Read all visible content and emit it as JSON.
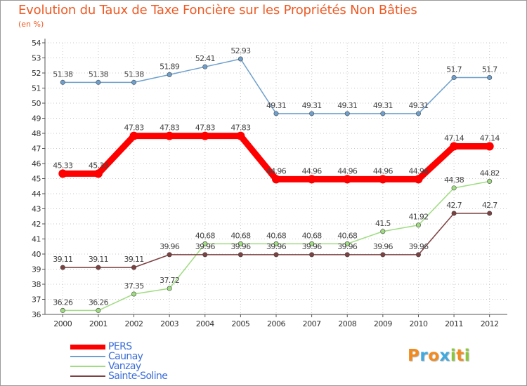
{
  "chart_data": {
    "type": "line",
    "title": "Evolution du Taux de Taxe Foncière sur les Propriétés Non Bâties",
    "subtitle": "(en %)",
    "xlabel": "",
    "ylabel": "(en %)",
    "ylim": [
      36,
      54
    ],
    "yticks": [
      "36",
      "37",
      "38",
      "39",
      "40",
      "41",
      "42",
      "43",
      "44",
      "45",
      "46",
      "47",
      "48",
      "49",
      "50",
      "51",
      "52",
      "53",
      "54"
    ],
    "x": [
      "2000",
      "2001",
      "2002",
      "2003",
      "2004",
      "2005",
      "2006",
      "2007",
      "2008",
      "2009",
      "2010",
      "2011",
      "2012"
    ],
    "series": [
      {
        "name": "PERS",
        "color": "#ff0000",
        "values": [
          45.33,
          45.33,
          47.83,
          47.83,
          47.83,
          47.83,
          44.96,
          44.96,
          44.96,
          44.96,
          44.96,
          47.14,
          47.14
        ],
        "labels": [
          "45.33",
          "45.33",
          "47.83",
          "47.83",
          "47.83",
          "47.83",
          "44.96",
          "44.96",
          "44.96",
          "44.96",
          "44.96",
          "47.14",
          "47.14"
        ]
      },
      {
        "name": "Caunay",
        "color": "#6ea0cd",
        "values": [
          51.38,
          51.38,
          51.38,
          51.89,
          52.41,
          52.93,
          49.31,
          49.31,
          49.31,
          49.31,
          49.31,
          51.7,
          51.7
        ],
        "labels": [
          "51.38",
          "51.38",
          "51.38",
          "51.89",
          "52.41",
          "52.93",
          "49.31",
          "49.31",
          "49.31",
          "49.31",
          "49.31",
          "51.7",
          "51.7"
        ]
      },
      {
        "name": "Vanzay",
        "color": "#a0dc82",
        "values": [
          36.26,
          36.26,
          37.35,
          37.72,
          40.68,
          40.68,
          40.68,
          40.68,
          40.68,
          41.5,
          41.92,
          44.38,
          44.82
        ],
        "labels": [
          "36.26",
          "36.26",
          "37.35",
          "37.72",
          "40.68",
          "40.68",
          "40.68",
          "40.68",
          "40.68",
          "41.5",
          "41.92",
          "44.38",
          "44.82"
        ]
      },
      {
        "name": "Sainte-Soline",
        "color": "#7d4141",
        "values": [
          39.11,
          39.11,
          39.11,
          39.96,
          39.96,
          39.96,
          39.96,
          39.96,
          39.96,
          39.96,
          39.96,
          42.7,
          42.7
        ],
        "labels": [
          "39.11",
          "39.11",
          "39.11",
          "39.96",
          "39.96",
          "39.96",
          "39.96",
          "39.96",
          "39.96",
          "39.96",
          "39.96",
          "42.7",
          "42.7"
        ]
      }
    ]
  },
  "logo": {
    "letters": [
      {
        "ch": "P",
        "color": "#f28a1e"
      },
      {
        "ch": "r",
        "color": "#3fa9e0"
      },
      {
        "ch": "o",
        "color": "#f28a1e"
      },
      {
        "ch": "x",
        "color": "#3fa9e0"
      },
      {
        "ch": "i",
        "color": "#8cc63f"
      },
      {
        "ch": "t",
        "color": "#f28a1e"
      },
      {
        "ch": "i",
        "color": "#8cc63f"
      }
    ]
  }
}
